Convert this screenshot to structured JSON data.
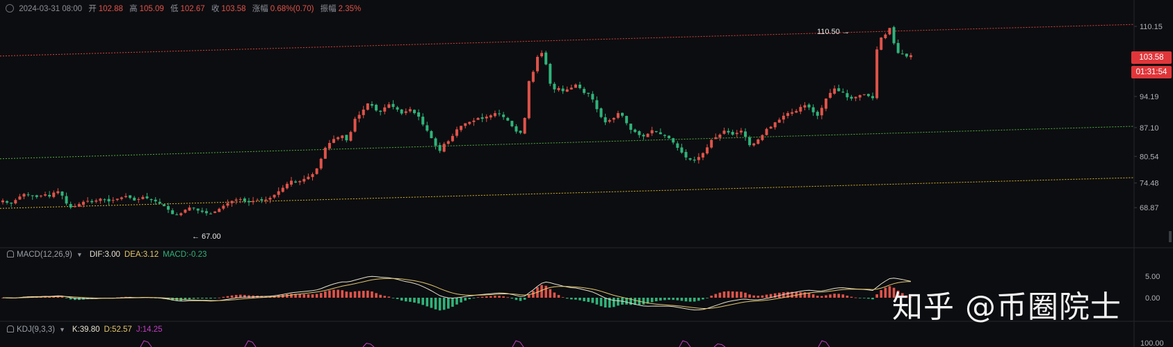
{
  "header": {
    "datetime": "2024-03-31 08:00",
    "open_label": "开",
    "open": "102.88",
    "high_label": "高",
    "high": "105.09",
    "low_label": "低",
    "low": "102.67",
    "close_label": "收",
    "close": "103.58",
    "change_label": "涨幅",
    "change": "0.68%(0.70)",
    "amp_label": "振幅",
    "amp": "2.35%"
  },
  "price_badge": "103.58",
  "countdown_badge": "01:31:54",
  "annotations": {
    "high_marker": "110.50 →",
    "low_marker": "← 67.00"
  },
  "macd": {
    "name": "MACD(12,26,9)",
    "dif": "DIF:3.00",
    "dea": "DEA:3.12",
    "macd": "MACD:-0.23"
  },
  "kdj": {
    "name": "KDJ(9,3,3)",
    "k": "K:39.80",
    "d": "D:52.57",
    "j": "J:14.25"
  },
  "watermark": "知乎 @币圈院士",
  "colors": {
    "up": "#e0534a",
    "down": "#2fb37a",
    "dif": "#e8e2d0",
    "dea": "#e6c86e",
    "red_line": "#d8443c",
    "green_line": "#52b043",
    "yellow_line": "#d8b42c",
    "j_line": "#c23ec2"
  },
  "chart_data": {
    "type": "candlestick",
    "price_axis": {
      "ticks": [
        "110.15",
        "94.19",
        "87.10",
        "80.54",
        "74.48",
        "68.87"
      ],
      "ylim": [
        64,
        113
      ]
    },
    "macd_axis": {
      "ticks": [
        "5.00",
        "0.00"
      ]
    },
    "kdj_axis": {
      "ticks": [
        "100.00"
      ]
    },
    "trend_lines": [
      {
        "name": "upper",
        "color": "red",
        "style": "dotted"
      },
      {
        "name": "middle",
        "color": "green",
        "style": "dotted"
      },
      {
        "name": "lower",
        "color": "yellow",
        "style": "dotted"
      }
    ],
    "close_series": [
      70.5,
      70.0,
      69.8,
      70.6,
      71.4,
      72.0,
      71.8,
      71.5,
      71.3,
      71.6,
      71.9,
      71.4,
      72.3,
      72.6,
      71.6,
      69.8,
      68.9,
      69.2,
      69.7,
      70.2,
      70.4,
      70.1,
      70.5,
      70.9,
      70.7,
      70.3,
      70.6,
      70.9,
      71.2,
      71.5,
      71.1,
      70.5,
      70.8,
      71.3,
      71.0,
      70.6,
      70.3,
      69.8,
      69.2,
      68.4,
      67.4,
      67.2,
      67.6,
      68.4,
      68.9,
      68.7,
      68.2,
      67.9,
      67.6,
      67.5,
      68.0,
      68.6,
      69.3,
      69.9,
      70.4,
      70.7,
      70.8,
      70.3,
      70.1,
      70.4,
      70.6,
      70.5,
      70.7,
      71.1,
      71.8,
      72.6,
      73.4,
      74.3,
      75.0,
      74.6,
      74.9,
      75.4,
      75.9,
      76.5,
      77.8,
      80.0,
      82.5,
      83.6,
      84.5,
      84.9,
      85.3,
      84.2,
      86.1,
      89.1,
      90.0,
      91.2,
      92.6,
      92.1,
      91.0,
      90.7,
      91.7,
      92.4,
      91.8,
      91.2,
      90.3,
      90.8,
      91.3,
      90.4,
      89.6,
      87.8,
      86.4,
      84.7,
      83.0,
      81.8,
      83.4,
      84.0,
      85.2,
      86.7,
      87.5,
      88.1,
      88.4,
      88.7,
      89.3,
      89.1,
      89.6,
      89.9,
      90.4,
      90.2,
      89.5,
      88.7,
      87.4,
      86.2,
      85.9,
      89.3,
      97.7,
      99.8,
      103.2,
      104.1,
      101.5,
      97.1,
      95.8,
      96.1,
      95.4,
      95.8,
      96.2,
      96.9,
      96.1,
      95.0,
      94.8,
      93.5,
      91.3,
      89.5,
      88.3,
      88.8,
      89.3,
      90.4,
      89.8,
      88.1,
      86.6,
      86.1,
      85.4,
      85.1,
      85.7,
      86.5,
      86.1,
      85.6,
      85.2,
      84.7,
      83.7,
      82.5,
      81.4,
      80.3,
      79.8,
      79.6,
      80.4,
      81.3,
      82.6,
      84.3,
      84.9,
      85.5,
      86.4,
      86.0,
      85.5,
      85.9,
      86.4,
      85.0,
      83.1,
      83.5,
      84.4,
      85.4,
      86.8,
      87.3,
      88.3,
      88.9,
      89.8,
      90.4,
      90.6,
      90.9,
      91.8,
      92.2,
      91.7,
      90.6,
      89.8,
      91.6,
      93.7,
      95.0,
      96.0,
      95.4,
      95.1,
      94.0,
      93.7,
      94.1,
      94.5,
      94.7,
      94.3,
      93.8,
      104.9,
      107.6,
      108.3,
      109.8,
      106.3,
      104.1,
      103.8,
      103.3,
      103.58
    ]
  }
}
